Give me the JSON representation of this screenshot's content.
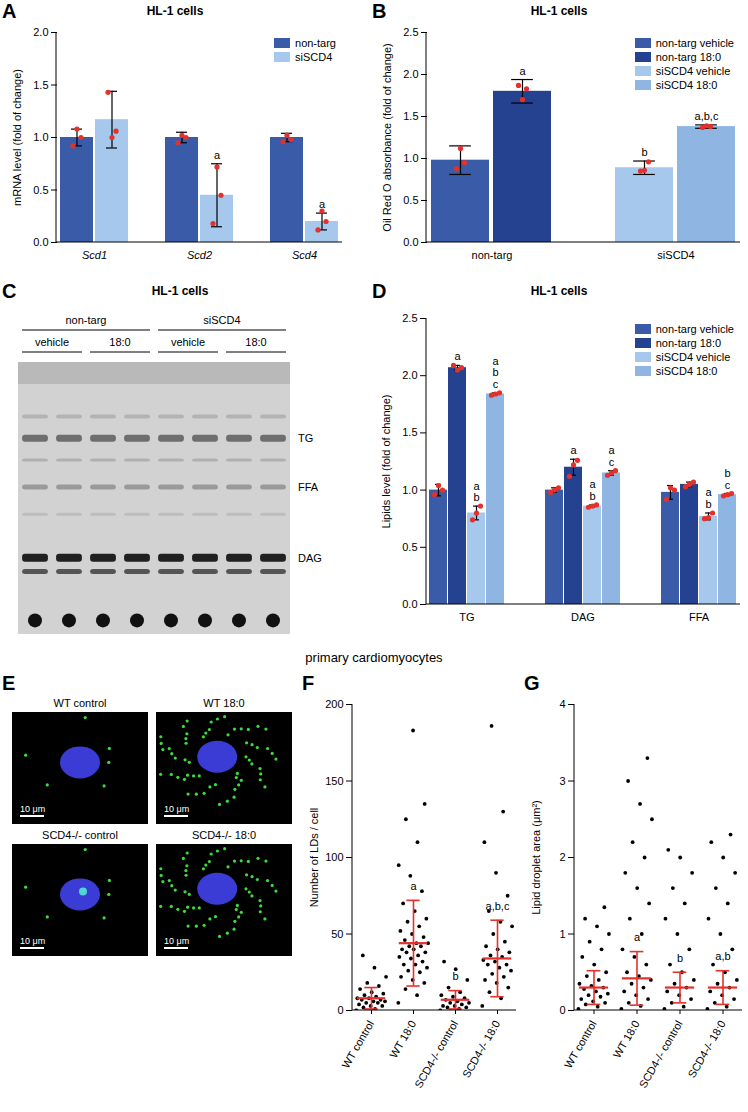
{
  "heading": "primary cardiomyocytes",
  "chart_data": [
    {
      "type": "bar",
      "panel": "A",
      "title": "HL-1 cells",
      "ylabel": "mRNA level (fold of change)",
      "categories": [
        "Scd1",
        "Scd2",
        "Scd4"
      ],
      "ylim": [
        0,
        2
      ],
      "yticks": [
        {
          "value": 0,
          "label": "0.0"
        },
        0.5,
        {
          "value": 1,
          "label": "1.0"
        },
        1.5,
        {
          "value": 2,
          "label": "2.0"
        }
      ],
      "legend": "top-right",
      "series": [
        {
          "name": "non-targ",
          "color": "#3a5ba8",
          "values": [
            1.0,
            1.0,
            1.0
          ],
          "errors": [
            0.08,
            0.05,
            0.04
          ],
          "points": [
            [
              0.92,
              1.08,
              1.0
            ],
            [
              0.95,
              1.02,
              1.0
            ],
            [
              0.96,
              1.02,
              0.98
            ]
          ],
          "labels": [
            null,
            null,
            null
          ]
        },
        {
          "name": "siSCD4",
          "color": "#a6c8ec",
          "values": [
            1.17,
            0.45,
            0.2
          ],
          "errors": [
            0.27,
            0.3,
            0.08
          ],
          "points": [
            [
              1.43,
              1.0,
              1.06
            ],
            [
              0.18,
              0.72,
              0.45
            ],
            [
              0.12,
              0.3,
              0.2
            ]
          ],
          "labels": [
            null,
            "a",
            "a"
          ]
        }
      ]
    },
    {
      "type": "bar",
      "panel": "B",
      "title": "HL-1 cells",
      "ylabel": "Oil Red O absorbance (fold of change)",
      "categories": [
        "non-targ",
        "siSCD4"
      ],
      "ylim": [
        0,
        2.5
      ],
      "yticks": [
        {
          "value": 0,
          "label": "0.0"
        },
        0.5,
        {
          "value": 1,
          "label": "1.0"
        },
        1.5,
        {
          "value": 2,
          "label": "2.0"
        },
        2.5
      ],
      "legend": "top-right",
      "series": [
        {
          "name": "non-targ vehicle",
          "color": "#3a5ba8",
          "values": [
            0.98,
            null
          ],
          "errors": [
            0.17,
            null
          ],
          "points": [
            [
              0.88,
              1.12,
              0.95
            ],
            null
          ],
          "labels": [
            null,
            null
          ]
        },
        {
          "name": "non-targ 18:0",
          "color": "#24428f",
          "values": [
            1.8,
            null
          ],
          "errors": [
            0.14,
            null
          ],
          "points": [
            [
              1.87,
              1.7,
              1.83
            ],
            null
          ],
          "labels": [
            "a",
            null
          ]
        },
        {
          "name": "siSCD4 vehicle",
          "color": "#a6c8ec",
          "values": [
            null,
            0.89
          ],
          "errors": [
            null,
            0.08
          ],
          "points": [
            null,
            [
              0.85,
              0.86,
              0.96
            ]
          ],
          "labels": [
            null,
            "b"
          ]
        },
        {
          "name": "siSCD4 18:0",
          "color": "#8fb6e3",
          "values": [
            null,
            1.38
          ],
          "errors": [
            null,
            0.02
          ],
          "points": [
            null,
            [
              1.37,
              1.39,
              1.38
            ]
          ],
          "labels": [
            null,
            "a,b,c"
          ]
        }
      ]
    },
    {
      "type": "gel",
      "panel": "C",
      "title": "HL-1 cells",
      "groups": [
        {
          "label": "non-targ",
          "subgroups": [
            "vehicle",
            "18:0"
          ]
        },
        {
          "label": "siSCD4",
          "subgroups": [
            "vehicle",
            "18:0"
          ]
        }
      ],
      "replicates": 2,
      "band_labels": [
        "TG",
        "FFA",
        "DAG"
      ]
    },
    {
      "type": "bar",
      "panel": "D",
      "title": "HL-1 cells",
      "ylabel": "Lipids level (fold of change)",
      "categories": [
        "TG",
        "DAG",
        "FFA"
      ],
      "ylim": [
        0,
        2.5
      ],
      "yticks": [
        {
          "value": 0,
          "label": "0.0"
        },
        0.5,
        {
          "value": 1,
          "label": "1.0"
        },
        1.5,
        {
          "value": 2,
          "label": "2.0"
        },
        2.5
      ],
      "legend": "top-right",
      "series": [
        {
          "name": "non-targ vehicle",
          "color": "#3a5ba8",
          "values": [
            1.0,
            1.0,
            0.98
          ],
          "errors": [
            0.05,
            0.02,
            0.06
          ],
          "points": [
            [
              0.96,
              1.04,
              1.0
            ],
            [
              0.98,
              1.0,
              1.02
            ],
            [
              0.92,
              1.02,
              1.0
            ]
          ],
          "labels": [
            null,
            null,
            null
          ]
        },
        {
          "name": "non-targ 18:0",
          "color": "#24428f",
          "values": [
            2.07,
            1.2,
            1.05
          ],
          "errors": [
            0.02,
            0.07,
            0.02
          ],
          "points": [
            [
              2.09,
              2.05,
              2.07
            ],
            [
              1.12,
              1.22,
              1.26
            ],
            [
              1.03,
              1.05,
              1.07
            ]
          ],
          "labels": [
            [
              "a"
            ],
            [
              "a"
            ],
            null
          ]
        },
        {
          "name": "siSCD4 vehicle",
          "color": "#a6c8ec",
          "values": [
            0.8,
            0.86,
            0.77
          ],
          "errors": [
            0.06,
            0.01,
            0.03
          ],
          "points": [
            [
              0.74,
              0.8,
              0.86
            ],
            [
              0.85,
              0.86,
              0.87
            ],
            [
              0.75,
              0.76,
              0.8
            ]
          ],
          "labels": [
            [
              "a",
              "b"
            ],
            [
              "a",
              "b"
            ],
            [
              "a",
              "b"
            ]
          ]
        },
        {
          "name": "siSCD4 18:0",
          "color": "#8fb6e3",
          "values": [
            1.84,
            1.15,
            0.96
          ],
          "errors": [
            0.01,
            0.02,
            0.01
          ],
          "points": [
            [
              1.83,
              1.84,
              1.85
            ],
            [
              1.13,
              1.15,
              1.17
            ],
            [
              0.95,
              0.96,
              0.97
            ]
          ],
          "labels": [
            [
              "a",
              "b",
              "c"
            ],
            [
              "a",
              "c"
            ],
            [
              "b",
              "c"
            ]
          ]
        }
      ]
    },
    {
      "type": "micrograph",
      "panel": "E",
      "images": [
        "WT control",
        "WT 18:0",
        "SCD4-/- control",
        "SCD4-/- 18:0"
      ],
      "scale_bar": "10 μm"
    },
    {
      "type": "scatter",
      "panel": "F",
      "ylabel": "Number of LDs / cell",
      "categories": [
        "WT control",
        "WT 18:0",
        "SCD4-/- control",
        "SCD4-/- 18:0"
      ],
      "ylim": [
        0,
        200
      ],
      "yticks": [
        0,
        50,
        100,
        150,
        200
      ],
      "means": [
        8,
        44,
        7,
        34
      ],
      "sd": [
        7,
        28,
        6,
        25
      ],
      "labels": [
        null,
        "a",
        "b",
        "a,b,c"
      ],
      "points": [
        [
          0,
          1,
          2,
          3,
          3,
          4,
          5,
          5,
          6,
          6,
          7,
          7,
          8,
          8,
          9,
          10,
          11,
          12,
          14,
          16,
          18,
          22,
          28,
          36
        ],
        [
          5,
          10,
          14,
          18,
          20,
          22,
          25,
          26,
          28,
          30,
          30,
          32,
          34,
          35,
          36,
          38,
          38,
          40,
          40,
          42,
          42,
          44,
          44,
          46,
          48,
          50,
          52,
          55,
          58,
          60,
          65,
          70,
          78,
          88,
          95,
          110,
          125,
          135,
          183
        ],
        [
          0,
          1,
          2,
          2,
          3,
          3,
          4,
          5,
          5,
          6,
          7,
          8,
          9,
          10,
          12,
          15,
          20,
          27,
          32
        ],
        [
          3,
          8,
          12,
          15,
          18,
          20,
          22,
          24,
          26,
          28,
          30,
          30,
          32,
          33,
          35,
          36,
          38,
          40,
          42,
          45,
          50,
          55,
          58,
          65,
          75,
          90,
          110,
          130,
          186
        ]
      ]
    },
    {
      "type": "scatter",
      "panel": "G",
      "ylabel": "Lipid droplet area (μm²)",
      "categories": [
        "WT control",
        "WT 18:0",
        "SCD4-/- control",
        "SCD4-/- 18:0"
      ],
      "ylim": [
        0,
        4
      ],
      "yticks": [
        0,
        1,
        2,
        3,
        4
      ],
      "means": [
        0.3,
        0.42,
        0.3,
        0.3
      ],
      "sd": [
        0.22,
        0.35,
        0.2,
        0.22
      ],
      "labels": [
        null,
        "a",
        "b",
        "a,b"
      ],
      "points": [
        [
          0.02,
          0.05,
          0.08,
          0.1,
          0.12,
          0.15,
          0.18,
          0.2,
          0.22,
          0.25,
          0.28,
          0.3,
          0.32,
          0.35,
          0.4,
          0.45,
          0.5,
          0.6,
          0.7,
          0.8,
          0.9,
          1.0,
          1.1,
          1.2,
          1.35
        ],
        [
          0.02,
          0.06,
          0.1,
          0.15,
          0.2,
          0.25,
          0.3,
          0.35,
          0.4,
          0.45,
          0.5,
          0.6,
          0.7,
          0.8,
          1.0,
          1.2,
          1.4,
          1.6,
          1.8,
          2.0,
          2.2,
          2.5,
          2.7,
          3.0,
          3.3
        ],
        [
          0.02,
          0.05,
          0.1,
          0.15,
          0.2,
          0.25,
          0.3,
          0.35,
          0.4,
          0.5,
          0.6,
          0.8,
          1.0,
          1.2,
          1.4,
          1.6,
          1.8,
          2.0,
          2.1
        ],
        [
          0.02,
          0.05,
          0.1,
          0.15,
          0.2,
          0.25,
          0.3,
          0.35,
          0.4,
          0.5,
          0.6,
          0.8,
          1.0,
          1.2,
          1.4,
          1.6,
          1.8,
          2.0,
          2.2,
          2.3
        ]
      ]
    }
  ]
}
